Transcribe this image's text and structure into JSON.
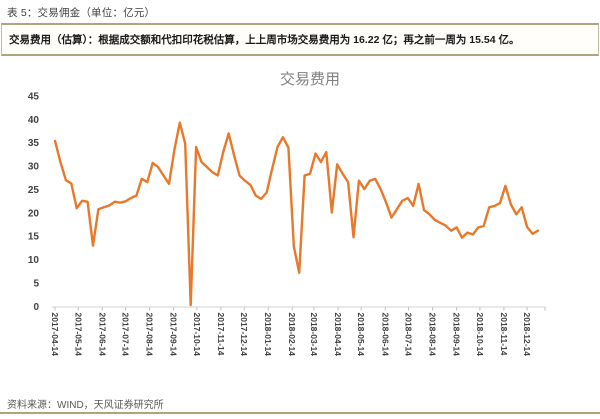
{
  "page": {
    "table_label": "表 5：交易佣金（单位：亿元）",
    "note": "交易费用（估算）：根据成交额和代扣印花税估算，上上周市场交易费用为 16.22 亿；再之前一周为 15.54 亿。",
    "source": "资料来源：WIND，天风证券研究所"
  },
  "colors": {
    "line": "#e8782a",
    "rule_tan": "#b3a27e",
    "axis_gray": "#d9d9d9",
    "tick_gray": "#bfbfbf",
    "title_gray": "#808080"
  },
  "chart_data": {
    "type": "line",
    "title": "交易费用",
    "xlabel": "",
    "ylabel": "",
    "ylim": [
      0,
      45
    ],
    "ytick_step": 5,
    "grid": false,
    "legend": "none",
    "x_tick_labels": [
      "2017-04-14",
      "2017-05-14",
      "2017-06-14",
      "2017-07-14",
      "2017-08-14",
      "2017-09-14",
      "2017-10-14",
      "2017-11-14",
      "2017-12-14",
      "2018-01-14",
      "2018-02-14",
      "2018-03-14",
      "2018-04-14",
      "2018-05-14",
      "2018-06-14",
      "2018-07-14",
      "2018-08-14",
      "2018-09-14",
      "2018-10-14",
      "2018-11-14",
      "2018-12-14"
    ],
    "series": [
      {
        "name": "交易费用",
        "dates": [
          "2017-04-14",
          "2017-04-21",
          "2017-04-28",
          "2017-05-05",
          "2017-05-12",
          "2017-05-19",
          "2017-05-26",
          "2017-06-02",
          "2017-06-09",
          "2017-06-16",
          "2017-06-23",
          "2017-06-30",
          "2017-07-07",
          "2017-07-14",
          "2017-07-21",
          "2017-07-28",
          "2017-08-04",
          "2017-08-11",
          "2017-08-18",
          "2017-08-25",
          "2017-09-01",
          "2017-09-08",
          "2017-09-15",
          "2017-09-22",
          "2017-09-29",
          "2017-10-06",
          "2017-10-13",
          "2017-10-20",
          "2017-10-27",
          "2017-11-03",
          "2017-11-10",
          "2017-11-17",
          "2017-11-24",
          "2017-12-01",
          "2017-12-08",
          "2017-12-15",
          "2017-12-22",
          "2017-12-29",
          "2018-01-05",
          "2018-01-12",
          "2018-01-19",
          "2018-01-26",
          "2018-02-02",
          "2018-02-09",
          "2018-02-16",
          "2018-02-23",
          "2018-03-02",
          "2018-03-09",
          "2018-03-16",
          "2018-03-23",
          "2018-03-30",
          "2018-04-06",
          "2018-04-13",
          "2018-04-20",
          "2018-04-27",
          "2018-05-04",
          "2018-05-11",
          "2018-05-18",
          "2018-05-25",
          "2018-06-01",
          "2018-06-08",
          "2018-06-15",
          "2018-06-22",
          "2018-06-29",
          "2018-07-06",
          "2018-07-13",
          "2018-07-20",
          "2018-07-27",
          "2018-08-03",
          "2018-08-10",
          "2018-08-17",
          "2018-08-24",
          "2018-08-31",
          "2018-09-07",
          "2018-09-14",
          "2018-09-21",
          "2018-09-28",
          "2018-10-05",
          "2018-10-12",
          "2018-10-19",
          "2018-10-26",
          "2018-11-02",
          "2018-11-09",
          "2018-11-16",
          "2018-11-23",
          "2018-11-30",
          "2018-12-07",
          "2018-12-14",
          "2018-12-21",
          "2018-12-28"
        ],
        "values": [
          35.4,
          30.9,
          27.0,
          26.3,
          21.0,
          22.6,
          22.4,
          13.0,
          20.8,
          21.2,
          21.6,
          22.4,
          22.2,
          22.5,
          23.2,
          23.7,
          27.3,
          26.6,
          30.7,
          29.8,
          28.0,
          26.2,
          33.5,
          39.3,
          34.8,
          0.3,
          34.1,
          30.9,
          29.8,
          28.7,
          28.0,
          33.0,
          37.0,
          32.3,
          28.0,
          26.9,
          26.0,
          23.7,
          23.0,
          24.4,
          29.4,
          34.1,
          36.2,
          34.0,
          12.9,
          7.2,
          28.0,
          28.4,
          32.7,
          30.9,
          33.0,
          20.1,
          30.4,
          28.4,
          26.6,
          14.8,
          26.9,
          25.1,
          26.9,
          27.3,
          25.1,
          22.3,
          19.0,
          20.8,
          22.6,
          23.2,
          21.5,
          26.2,
          20.6,
          19.7,
          18.5,
          17.9,
          17.3,
          16.2,
          16.9,
          14.7,
          15.8,
          15.4,
          16.9,
          17.2,
          21.2,
          21.5,
          22.1,
          25.8,
          21.8,
          19.7,
          21.2,
          17.0,
          15.54,
          16.22
        ]
      }
    ],
    "latest_week_value": 16.22,
    "previous_week_value": 15.54
  }
}
